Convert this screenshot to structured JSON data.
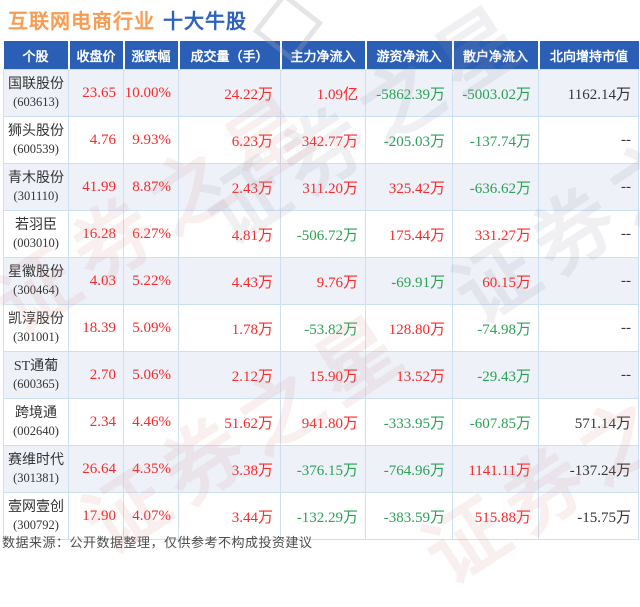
{
  "title": {
    "industry": "互联网电商行业",
    "suffix": "十大牛股"
  },
  "table": {
    "columns": [
      {
        "key": "name",
        "label": "个股",
        "type": "name"
      },
      {
        "key": "close",
        "label": "收盘价",
        "type": "up"
      },
      {
        "key": "change",
        "label": "涨跌幅",
        "type": "up"
      },
      {
        "key": "volume",
        "label": "成交量（手）",
        "type": "up"
      },
      {
        "key": "main",
        "label": "主力净流入",
        "type": "auto"
      },
      {
        "key": "hot",
        "label": "游资净流入",
        "type": "auto"
      },
      {
        "key": "retail",
        "label": "散户净流入",
        "type": "auto"
      },
      {
        "key": "north",
        "label": "北向增持市值",
        "type": "plain"
      }
    ],
    "rows": [
      {
        "name": "国联股份",
        "code": "(603613)",
        "close": "23.65",
        "change": "10.00%",
        "volume": "24.22万",
        "main": "1.09亿",
        "hot": "-5862.39万",
        "retail": "-5003.02万",
        "north": "1162.14万"
      },
      {
        "name": "狮头股份",
        "code": "(600539)",
        "close": "4.76",
        "change": "9.93%",
        "volume": "6.23万",
        "main": "342.77万",
        "hot": "-205.03万",
        "retail": "-137.74万",
        "north": "--"
      },
      {
        "name": "青木股份",
        "code": "(301110)",
        "close": "41.99",
        "change": "8.87%",
        "volume": "2.43万",
        "main": "311.20万",
        "hot": "325.42万",
        "retail": "-636.62万",
        "north": "--"
      },
      {
        "name": "若羽臣",
        "code": "(003010)",
        "close": "16.28",
        "change": "6.27%",
        "volume": "4.81万",
        "main": "-506.72万",
        "hot": "175.44万",
        "retail": "331.27万",
        "north": "--"
      },
      {
        "name": "星徽股份",
        "code": "(300464)",
        "close": "4.03",
        "change": "5.22%",
        "volume": "4.43万",
        "main": "9.76万",
        "hot": "-69.91万",
        "retail": "60.15万",
        "north": "--"
      },
      {
        "name": "凯淳股份",
        "code": "(301001)",
        "close": "18.39",
        "change": "5.09%",
        "volume": "1.78万",
        "main": "-53.82万",
        "hot": "128.80万",
        "retail": "-74.98万",
        "north": "--"
      },
      {
        "name": "ST通葡",
        "code": "(600365)",
        "close": "2.70",
        "change": "5.06%",
        "volume": "2.12万",
        "main": "15.90万",
        "hot": "13.52万",
        "retail": "-29.43万",
        "north": "--"
      },
      {
        "name": "跨境通",
        "code": "(002640)",
        "close": "2.34",
        "change": "4.46%",
        "volume": "51.62万",
        "main": "941.80万",
        "hot": "-333.95万",
        "retail": "-607.85万",
        "north": "571.14万"
      },
      {
        "name": "赛维时代",
        "code": "(301381)",
        "close": "26.64",
        "change": "4.35%",
        "volume": "3.38万",
        "main": "-376.15万",
        "hot": "-764.96万",
        "retail": "1141.11万",
        "north": "-137.24万"
      },
      {
        "name": "壹网壹创",
        "code": "(300792)",
        "close": "17.90",
        "change": "4.07%",
        "volume": "3.44万",
        "main": "-132.29万",
        "hot": "-383.59万",
        "retail": "515.88万",
        "north": "-15.75万"
      }
    ]
  },
  "footer": {
    "text": "数据来源：公开数据整理，仅供参考不构成投资建议"
  },
  "watermark": {
    "text": "证券之星"
  },
  "colors": {
    "title_industry": "#f99c53",
    "title_suffix": "#2e63bd",
    "header_bg": "#2b5fb6",
    "up_red": "#fa2828",
    "down_green": "#2aa155",
    "row_stripe": "#eef2f8",
    "cell_border": "#cde0f1",
    "plain_text": "#333333"
  },
  "chart_data": {
    "type": "table",
    "title": "互联网电商行业 十大牛股",
    "columns": [
      "个股",
      "收盘价",
      "涨跌幅",
      "成交量（手）",
      "主力净流入",
      "游资净流入",
      "散户净流入",
      "北向增持市值"
    ],
    "rows": [
      [
        "国联股份(603613)",
        "23.65",
        "10.00%",
        "24.22万",
        "1.09亿",
        "-5862.39万",
        "-5003.02万",
        "1162.14万"
      ],
      [
        "狮头股份(600539)",
        "4.76",
        "9.93%",
        "6.23万",
        "342.77万",
        "-205.03万",
        "-137.74万",
        "--"
      ],
      [
        "青木股份(301110)",
        "41.99",
        "8.87%",
        "2.43万",
        "311.20万",
        "325.42万",
        "-636.62万",
        "--"
      ],
      [
        "若羽臣(003010)",
        "16.28",
        "6.27%",
        "4.81万",
        "-506.72万",
        "175.44万",
        "331.27万",
        "--"
      ],
      [
        "星徽股份(300464)",
        "4.03",
        "5.22%",
        "4.43万",
        "9.76万",
        "-69.91万",
        "60.15万",
        "--"
      ],
      [
        "凯淳股份(301001)",
        "18.39",
        "5.09%",
        "1.78万",
        "-53.82万",
        "128.80万",
        "-74.98万",
        "--"
      ],
      [
        "ST通葡(600365)",
        "2.70",
        "5.06%",
        "2.12万",
        "15.90万",
        "13.52万",
        "-29.43万",
        "--"
      ],
      [
        "跨境通(002640)",
        "2.34",
        "4.46%",
        "51.62万",
        "941.80万",
        "-333.95万",
        "-607.85万",
        "571.14万"
      ],
      [
        "赛维时代(301381)",
        "26.64",
        "4.35%",
        "3.38万",
        "-376.15万",
        "-764.96万",
        "1141.11万",
        "-137.24万"
      ],
      [
        "壹网壹创(300792)",
        "17.90",
        "4.07%",
        "3.44万",
        "-132.29万",
        "-383.59万",
        "515.88万",
        "-15.75万"
      ]
    ]
  }
}
